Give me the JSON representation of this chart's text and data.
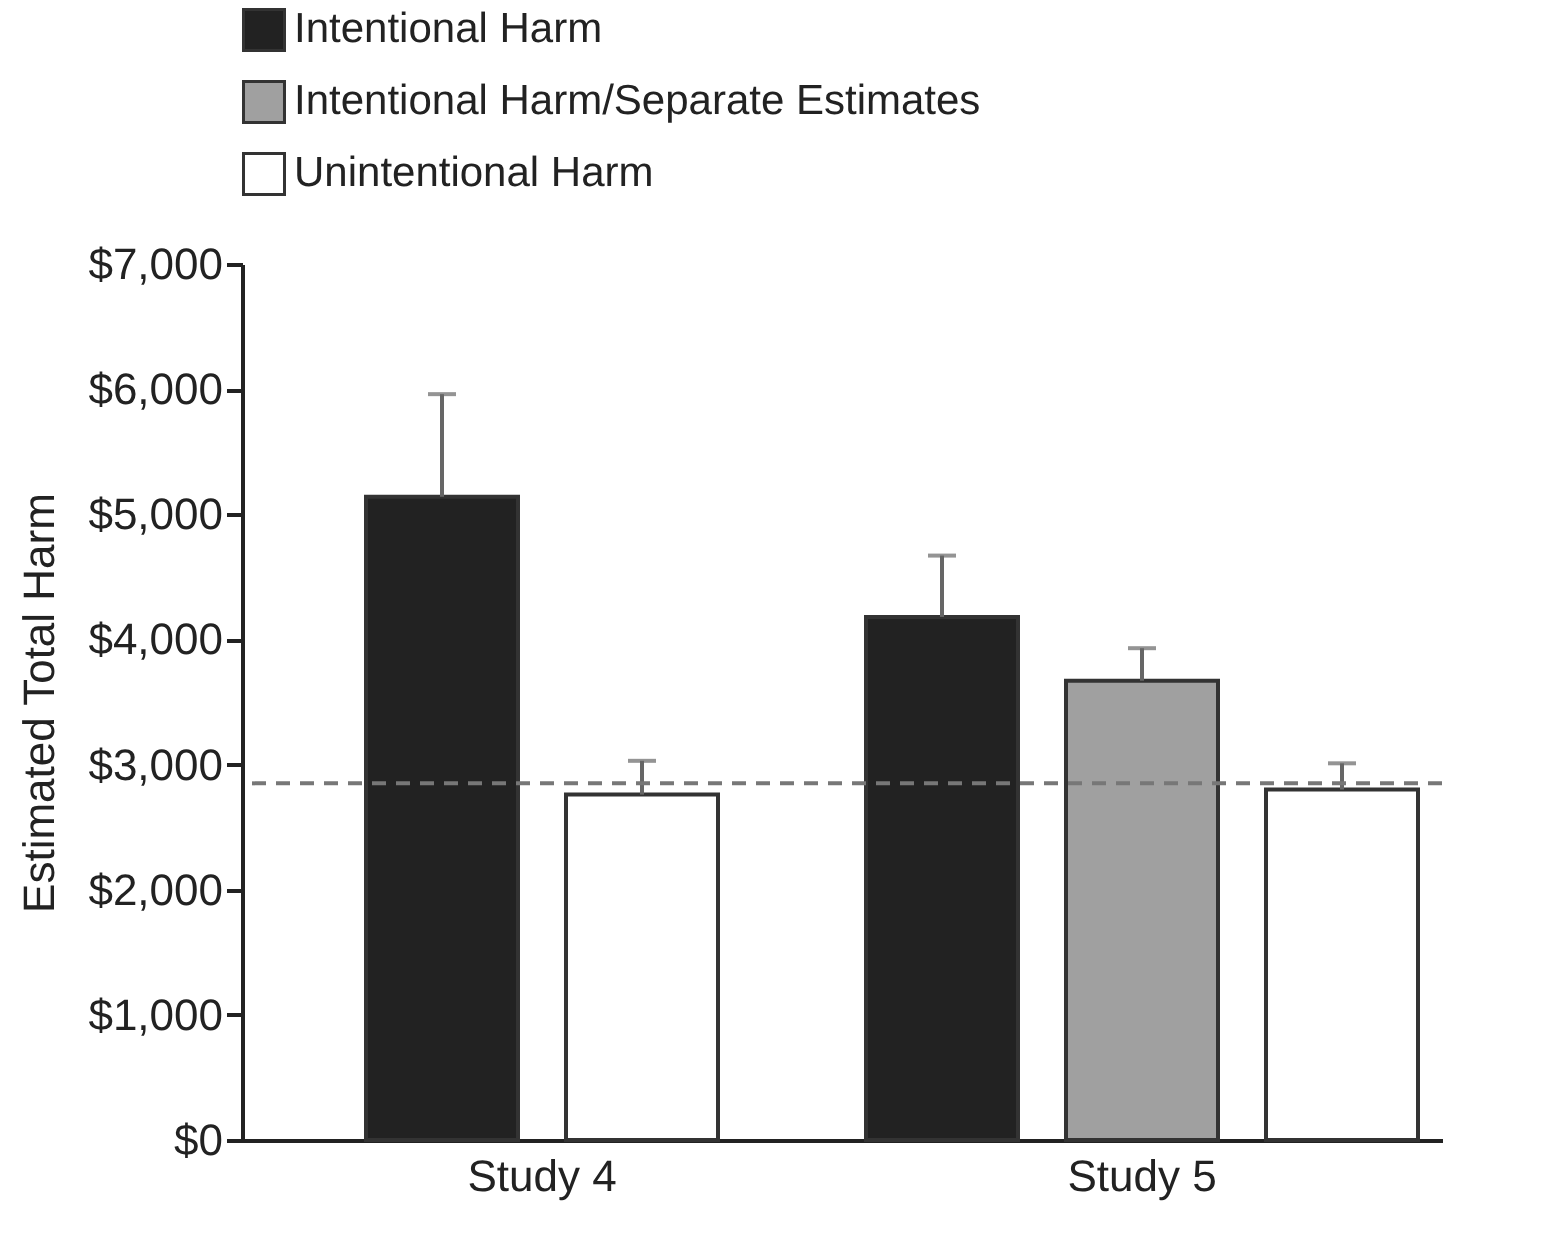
{
  "chart_data": {
    "type": "bar",
    "ylabel": "Estimated Total Harm",
    "categories": [
      "Study 4",
      "Study 5"
    ],
    "series": [
      {
        "name": "Intentional Harm",
        "color": "#222222",
        "values": [
          5140,
          4180
        ],
        "errors": [
          820,
          490
        ]
      },
      {
        "name": "Intentional Harm/Separate Estimates",
        "color": "#a0a0a0",
        "values": [
          null,
          3670
        ],
        "errors": [
          null,
          260
        ]
      },
      {
        "name": "Unintentional Harm",
        "color": "#ffffff",
        "values": [
          2760,
          2800
        ],
        "errors": [
          270,
          210
        ]
      }
    ],
    "ylim": [
      0,
      7000
    ],
    "yticks": [
      {
        "value": 0,
        "label": "$0"
      },
      {
        "value": 1000,
        "label": "$1,000"
      },
      {
        "value": 2000,
        "label": "$2,000"
      },
      {
        "value": 3000,
        "label": "$3,000"
      },
      {
        "value": 4000,
        "label": "$4,000"
      },
      {
        "value": 5000,
        "label": "$5,000"
      },
      {
        "value": 6000,
        "label": "$6,000"
      },
      {
        "value": 7000,
        "label": "$7,000"
      }
    ],
    "ref_lines": [
      {
        "axis": "y",
        "value": 2850,
        "label": null,
        "color": "#777777",
        "line_style": "dashed"
      }
    ],
    "grid": false,
    "legend": "top left"
  }
}
